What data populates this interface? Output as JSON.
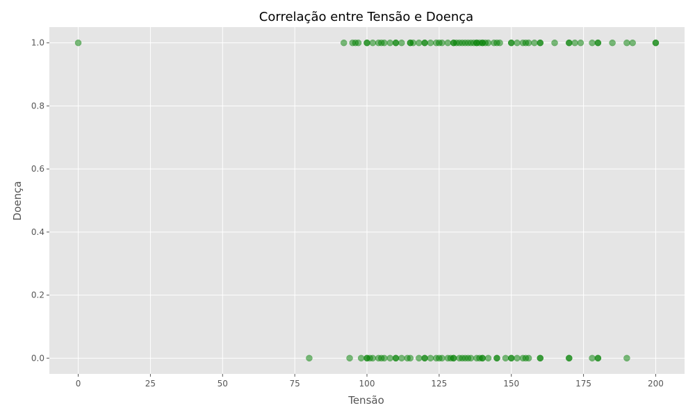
{
  "chart_data": {
    "type": "scatter",
    "title": "Correlação entre Tensão e Doença",
    "xlabel": "Tensão",
    "ylabel": "Doença",
    "xlim": [
      -10,
      210
    ],
    "ylim": [
      -0.05,
      1.05
    ],
    "xticks": [
      0,
      25,
      50,
      75,
      100,
      125,
      150,
      175,
      200
    ],
    "yticks": [
      0.0,
      0.2,
      0.4,
      0.6,
      0.8,
      1.0
    ],
    "xtick_labels": [
      "0",
      "25",
      "50",
      "75",
      "100",
      "125",
      "150",
      "175",
      "200"
    ],
    "ytick_labels": [
      "0.0",
      "0.2",
      "0.4",
      "0.6",
      "0.8",
      "1.0"
    ],
    "grid": true,
    "marker_color": "#008000",
    "marker_alpha": 0.5,
    "series": [
      {
        "points": [
          [
            0,
            1
          ],
          [
            92,
            1
          ],
          [
            95,
            1
          ],
          [
            96,
            1
          ],
          [
            97,
            1
          ],
          [
            100,
            1
          ],
          [
            100,
            1
          ],
          [
            102,
            1
          ],
          [
            104,
            1
          ],
          [
            105,
            1
          ],
          [
            106,
            1
          ],
          [
            108,
            1
          ],
          [
            110,
            1
          ],
          [
            110,
            1
          ],
          [
            112,
            1
          ],
          [
            115,
            1
          ],
          [
            115,
            1
          ],
          [
            116,
            1
          ],
          [
            118,
            1
          ],
          [
            120,
            1
          ],
          [
            120,
            1
          ],
          [
            122,
            1
          ],
          [
            124,
            1
          ],
          [
            125,
            1
          ],
          [
            126,
            1
          ],
          [
            128,
            1
          ],
          [
            130,
            1
          ],
          [
            130,
            1
          ],
          [
            131,
            1
          ],
          [
            132,
            1
          ],
          [
            133,
            1
          ],
          [
            134,
            1
          ],
          [
            135,
            1
          ],
          [
            136,
            1
          ],
          [
            137,
            1
          ],
          [
            138,
            1
          ],
          [
            138,
            1
          ],
          [
            139,
            1
          ],
          [
            140,
            1
          ],
          [
            140,
            1
          ],
          [
            141,
            1
          ],
          [
            142,
            1
          ],
          [
            144,
            1
          ],
          [
            145,
            1
          ],
          [
            146,
            1
          ],
          [
            150,
            1
          ],
          [
            150,
            1
          ],
          [
            152,
            1
          ],
          [
            154,
            1
          ],
          [
            155,
            1
          ],
          [
            156,
            1
          ],
          [
            158,
            1
          ],
          [
            160,
            1
          ],
          [
            160,
            1
          ],
          [
            165,
            1
          ],
          [
            170,
            1
          ],
          [
            170,
            1
          ],
          [
            172,
            1
          ],
          [
            174,
            1
          ],
          [
            178,
            1
          ],
          [
            180,
            1
          ],
          [
            180,
            1
          ],
          [
            185,
            1
          ],
          [
            190,
            1
          ],
          [
            192,
            1
          ],
          [
            200,
            1
          ],
          [
            200,
            1
          ],
          [
            80,
            0
          ],
          [
            94,
            0
          ],
          [
            98,
            0
          ],
          [
            100,
            0
          ],
          [
            100,
            0
          ],
          [
            101,
            0
          ],
          [
            102,
            0
          ],
          [
            104,
            0
          ],
          [
            105,
            0
          ],
          [
            106,
            0
          ],
          [
            108,
            0
          ],
          [
            110,
            0
          ],
          [
            110,
            0
          ],
          [
            112,
            0
          ],
          [
            114,
            0
          ],
          [
            115,
            0
          ],
          [
            118,
            0
          ],
          [
            120,
            0
          ],
          [
            120,
            0
          ],
          [
            122,
            0
          ],
          [
            124,
            0
          ],
          [
            125,
            0
          ],
          [
            126,
            0
          ],
          [
            128,
            0
          ],
          [
            129,
            0
          ],
          [
            130,
            0
          ],
          [
            130,
            0
          ],
          [
            132,
            0
          ],
          [
            133,
            0
          ],
          [
            134,
            0
          ],
          [
            135,
            0
          ],
          [
            136,
            0
          ],
          [
            138,
            0
          ],
          [
            139,
            0
          ],
          [
            140,
            0
          ],
          [
            140,
            0
          ],
          [
            142,
            0
          ],
          [
            145,
            0
          ],
          [
            145,
            0
          ],
          [
            148,
            0
          ],
          [
            150,
            0
          ],
          [
            150,
            0
          ],
          [
            152,
            0
          ],
          [
            154,
            0
          ],
          [
            155,
            0
          ],
          [
            156,
            0
          ],
          [
            160,
            0
          ],
          [
            160,
            0
          ],
          [
            170,
            0
          ],
          [
            170,
            0
          ],
          [
            178,
            0
          ],
          [
            180,
            0
          ],
          [
            180,
            0
          ],
          [
            190,
            0
          ]
        ]
      }
    ]
  }
}
